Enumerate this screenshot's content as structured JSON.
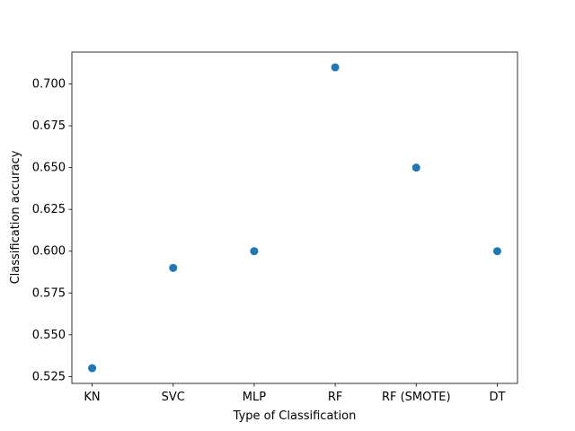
{
  "chart_data": {
    "type": "scatter",
    "title": "",
    "xlabel": "Type of Classification",
    "ylabel": "Classification accuracy",
    "categories": [
      "KN",
      "SVC",
      "MLP",
      "RF",
      "RF (SMOTE)",
      "DT"
    ],
    "values": [
      0.53,
      0.59,
      0.6,
      0.71,
      0.65,
      0.6
    ],
    "ylim": [
      0.5209,
      0.7191
    ],
    "yticks": [
      0.525,
      0.55,
      0.575,
      0.6,
      0.625,
      0.65,
      0.675,
      0.7
    ],
    "ytick_labels": [
      "0.525",
      "0.550",
      "0.575",
      "0.600",
      "0.625",
      "0.650",
      "0.675",
      "0.700"
    ],
    "grid": false,
    "legend": "none",
    "colors": {
      "marker": "#1f77b4",
      "axes": "#000000",
      "background": "#ffffff"
    }
  }
}
